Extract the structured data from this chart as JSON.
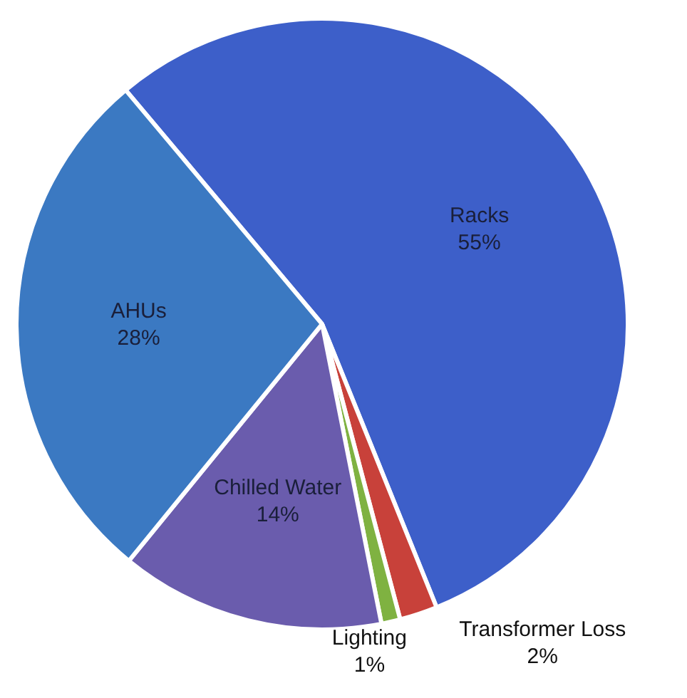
{
  "chart_data": {
    "type": "pie",
    "categories": [
      "Racks",
      "Transformer Loss",
      "Lighting",
      "Chilled Water",
      "AHUs"
    ],
    "values": [
      55,
      2,
      1,
      14,
      28
    ],
    "value_labels": [
      "55%",
      "2%",
      "1%",
      "14%",
      "28%"
    ],
    "colors": [
      "#3d5fc9",
      "#c8413a",
      "#7fb241",
      "#6a5cad",
      "#3b79c2"
    ],
    "legend": false
  }
}
